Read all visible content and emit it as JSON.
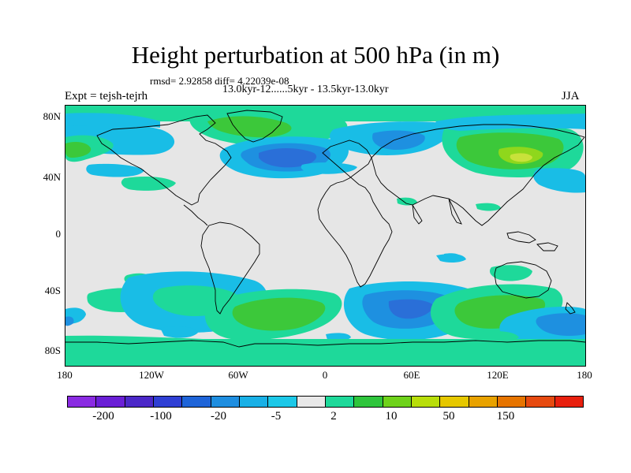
{
  "title": "Height perturbation at 500 hPa (in m)",
  "stats_line": "rmsd= 2.92858 diff= 4.22039e-08",
  "period_line": "13.0kyr-12......5kyr - 13.5kyr-13.0kyr",
  "left_label": "Expt = tejsh-tejrh",
  "right_label": "JJA",
  "lat_ticks": [
    "80N",
    "40N",
    "0",
    "40S",
    "80S"
  ],
  "lon_ticks": [
    "180",
    "120W",
    "60W",
    "0",
    "60E",
    "120E",
    "180"
  ],
  "colorbar": {
    "colors": [
      "#8a2be2",
      "#6a1fd6",
      "#4b28c8",
      "#2f3fd4",
      "#1e64d8",
      "#1e8ee0",
      "#19b0e6",
      "#1cc8e8",
      "#e8e8e8",
      "#1ed99a",
      "#2ec53c",
      "#6ed21a",
      "#b8de0a",
      "#e6c800",
      "#e8a200",
      "#e67400",
      "#e64a10",
      "#e8200e"
    ],
    "labels": [
      "-200",
      "-100",
      "-20",
      "-5",
      "2",
      "10",
      "50",
      "150"
    ]
  },
  "map": {
    "background": "#e6e6e6",
    "fill_colors": {
      "neg_light": "#19bde6",
      "neg_mid": "#1e90e0",
      "neg_dark": "#2a6fd8",
      "pos_light": "#1ed99a",
      "pos_mid": "#3cc83a",
      "pos_high": "#8fd71c",
      "pos_peak": "#c8e23a"
    }
  }
}
